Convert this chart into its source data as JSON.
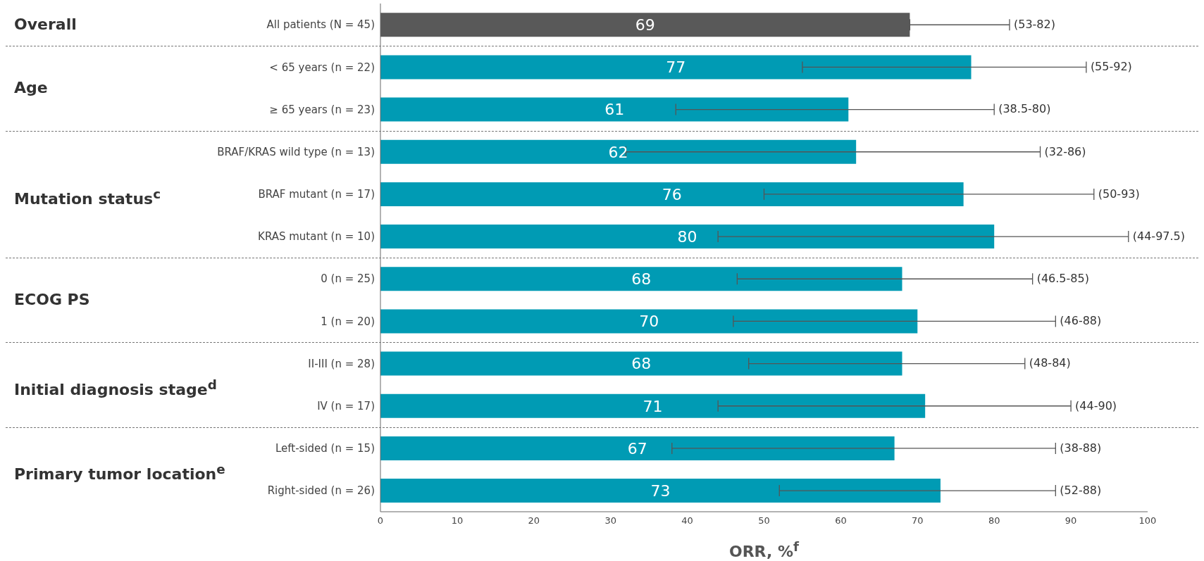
{
  "chart_data": {
    "type": "bar",
    "orientation": "horizontal",
    "xlabel": "ORR, %$^{f}$",
    "categories": [
      "All patients (N = 45)",
      "< 65 years (n = 22)",
      "≥ 65 years (n = 23)",
      "BRAF/KRAS wild type (n = 13)",
      "BRAF mutant (n = 17)",
      "KRAS mutant (n = 10)",
      "0 (n = 25)",
      "1 (n = 20)",
      "II-III (n = 28)",
      "IV (n = 17)",
      "Left-sided (n = 15)",
      "Right-sided (n = 26)"
    ],
    "values": [
      69,
      77,
      61,
      62,
      76,
      80,
      68,
      70,
      68,
      71,
      67,
      73
    ],
    "colors": [
      "#595959",
      "#009bb4",
      "#009bb4",
      "#009bb4",
      "#009bb4",
      "#009bb4",
      "#009bb4",
      "#009bb4",
      "#009bb4",
      "#009bb4",
      "#009bb4",
      "#009bb4"
    ],
    "errors": [
      [
        69,
        82
      ],
      [
        55,
        92
      ],
      [
        38.5,
        80
      ],
      [
        32,
        86
      ],
      [
        50,
        93
      ],
      [
        44,
        97.5
      ],
      [
        46.5,
        85
      ],
      [
        46,
        88
      ],
      [
        48,
        84
      ],
      [
        44,
        90
      ],
      [
        38,
        88
      ],
      [
        52,
        88
      ]
    ],
    "data_labels": true,
    "xlim": [
      0,
      100
    ],
    "xticks": [
      0,
      10,
      20,
      30,
      40,
      50,
      60,
      70,
      80,
      90,
      100
    ],
    "grid": false,
    "legend": false,
    "annotations": [
      "Overall",
      "Age",
      "Mutation status$^{c}$",
      "ECOG PS",
      "Initial diagnosis stage$^{d}$",
      "Primary tumor location$^{e}$",
      {
        "text": "(53-82)",
        "x": 82,
        "y": "All patients (N = 45)"
      },
      {
        "text": "(55-92)",
        "x": 92,
        "y": "< 65 years (n = 22)"
      },
      {
        "text": "(38.5-80)",
        "x": 80,
        "y": "≥ 65 years (n = 23)"
      },
      {
        "text": "(32-86)",
        "x": 86,
        "y": "BRAF/KRAS wild type (n = 13)"
      },
      {
        "text": "(50-93)",
        "x": 93,
        "y": "BRAF mutant (n = 17)"
      },
      {
        "text": "(44-97.5)",
        "x": 97.5,
        "y": "KRAS mutant (n = 10)"
      },
      {
        "text": "(46.5-85)",
        "x": 85,
        "y": "0 (n = 25)"
      },
      {
        "text": "(46-88)",
        "x": 88,
        "y": "1 (n = 20)"
      },
      {
        "text": "(48-84)",
        "x": 84,
        "y": "II-III (n = 28)"
      },
      {
        "text": "(44-90)",
        "x": 90,
        "y": "IV (n = 17)"
      },
      {
        "text": "(38-88)",
        "x": 88,
        "y": "Left-sided (n = 15)"
      },
      {
        "text": "(52-88)",
        "x": 88,
        "y": "Right-sided (n = 26)"
      }
    ]
  }
}
